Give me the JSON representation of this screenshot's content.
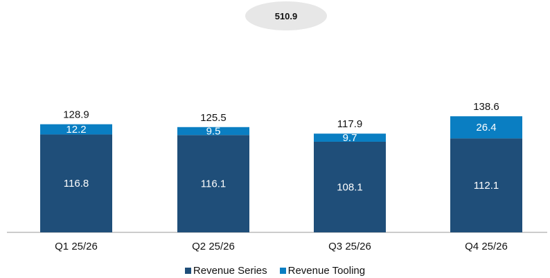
{
  "colors": {
    "series": "#1f4e79",
    "tooling": "#0a7ec2",
    "total_badge_bg": "#e7e7e7",
    "axis": "#999999"
  },
  "chart_data": {
    "type": "bar",
    "stacked": true,
    "categories": [
      "Q1 25/26",
      "Q2 25/26",
      "Q3 25/26",
      "Q4 25/26"
    ],
    "series": [
      {
        "name": "Revenue Series",
        "values": [
          116.8,
          116.1,
          108.1,
          112.1
        ]
      },
      {
        "name": "Revenue Tooling",
        "values": [
          12.2,
          9.5,
          9.7,
          26.4
        ]
      }
    ],
    "totals": [
      128.9,
      125.5,
      117.9,
      138.6
    ],
    "grand_total": "510.9",
    "legend_position": "bottom"
  }
}
